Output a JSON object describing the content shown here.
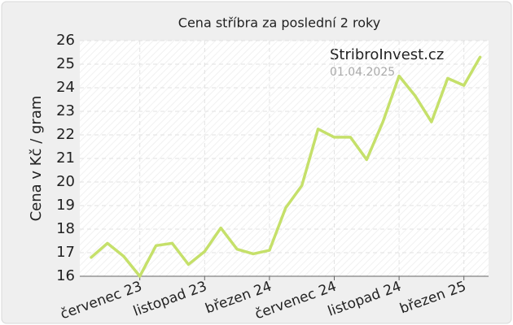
{
  "chart_data": {
    "type": "line",
    "title": "Cena stříbra za poslední 2 roky",
    "y_label": "Cena v Kč / gram",
    "annotations": [
      "StribroInvest.cz",
      "01.04.2025"
    ],
    "categories": [
      null,
      null,
      null,
      "červenec 23",
      null,
      null,
      null,
      "listopad 23",
      null,
      null,
      null,
      "březen 24",
      null,
      null,
      null,
      "červenec 24",
      null,
      null,
      null,
      "listopad 24",
      null,
      null,
      null,
      "březen 25",
      null
    ],
    "series": [
      {
        "name": "Cena",
        "color": "#c5e06a",
        "values": [
          16.8,
          17.4,
          16.85,
          16.0,
          17.3,
          17.4,
          16.5,
          17.05,
          18.05,
          17.15,
          16.95,
          17.1,
          18.9,
          19.85,
          22.25,
          21.9,
          21.9,
          20.95,
          22.55,
          24.5,
          23.65,
          22.55,
          24.4,
          24.1,
          25.3
        ]
      }
    ],
    "ylim": [
      16,
      26
    ],
    "yticks": [
      16,
      17,
      18,
      19,
      20,
      21,
      22,
      23,
      24,
      25,
      26
    ],
    "grid": true
  }
}
